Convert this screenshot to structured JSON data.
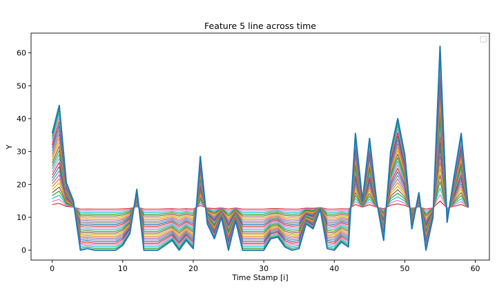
{
  "chart_data": {
    "type": "line",
    "title": "Feature 5 line across time",
    "xlabel": "Time Stamp [i]",
    "ylabel": "Y",
    "xlim": [
      -3,
      62
    ],
    "ylim": [
      -3,
      66
    ],
    "xticks": [
      0,
      10,
      20,
      30,
      40,
      50,
      60
    ],
    "yticks": [
      0,
      10,
      20,
      30,
      40,
      50,
      60
    ],
    "grid": false,
    "legend": {
      "position": "top-right",
      "entries": []
    },
    "x": [
      0,
      1,
      2,
      3,
      4,
      5,
      6,
      7,
      8,
      9,
      10,
      11,
      12,
      13,
      14,
      15,
      16,
      17,
      18,
      19,
      20,
      21,
      22,
      23,
      24,
      25,
      26,
      27,
      28,
      29,
      30,
      31,
      32,
      33,
      34,
      35,
      36,
      37,
      38,
      39,
      40,
      41,
      42,
      43,
      44,
      45,
      46,
      47,
      48,
      49,
      50,
      51,
      52,
      53,
      54,
      55,
      56,
      57,
      58,
      59
    ],
    "series_band": {
      "description_values": "envelope",
      "series_count": 25,
      "baseline": [
        13,
        13,
        13,
        13,
        13,
        13,
        13,
        13,
        13,
        13,
        13,
        13,
        13,
        13,
        13,
        13,
        13,
        13,
        13,
        13,
        13,
        13,
        13,
        13,
        13,
        13,
        13,
        13,
        13,
        13,
        13,
        13,
        13,
        13,
        13,
        13,
        13,
        13,
        13,
        13,
        13,
        13,
        13,
        13,
        13,
        13,
        13,
        13,
        13,
        13,
        13,
        13,
        13,
        13,
        13,
        13,
        13,
        13,
        13,
        13
      ],
      "outer": [
        35.5,
        44,
        20.5,
        15,
        0,
        0.5,
        0,
        0,
        0,
        0,
        1.5,
        5,
        18.5,
        0,
        0,
        0,
        1.5,
        3,
        0,
        3,
        0.5,
        28.5,
        8,
        3.5,
        10,
        0,
        9,
        0,
        0,
        0,
        0,
        3.5,
        4,
        1,
        0,
        0.5,
        8,
        6.5,
        12.5,
        0.5,
        0,
        2.5,
        1,
        35.5,
        15,
        34,
        15,
        3,
        30,
        40,
        29,
        6.5,
        17.5,
        0,
        10,
        62,
        8.5,
        22.5,
        35.5,
        13
      ]
    },
    "colors": [
      "#1f77b4",
      "#ff7f0e",
      "#2ca02c",
      "#d62728",
      "#9467bd",
      "#8c564b",
      "#e377c2",
      "#7f7f7f",
      "#bcbd22",
      "#17becf"
    ]
  }
}
